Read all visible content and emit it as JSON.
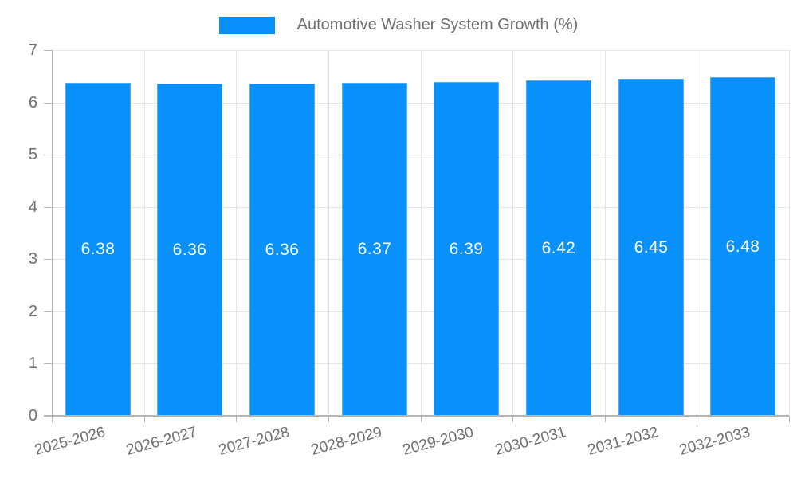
{
  "chart_data": {
    "type": "bar",
    "title": "Automotive Washer System Growth (%)",
    "categories": [
      "2025-2026",
      "2026-2027",
      "2027-2028",
      "2028-2029",
      "2029-2030",
      "2030-2031",
      "2031-2032",
      "2032-2033"
    ],
    "values": [
      6.38,
      6.36,
      6.36,
      6.37,
      6.39,
      6.42,
      6.45,
      6.48
    ],
    "value_labels": [
      "6.38",
      "6.36",
      "6.36",
      "6.37",
      "6.39",
      "6.42",
      "6.45",
      "6.48"
    ],
    "xlabel": "",
    "ylabel": "",
    "ylim": [
      0,
      7
    ],
    "ytick_step": 1,
    "ytick_labels": [
      "0",
      "1",
      "2",
      "3",
      "4",
      "5",
      "6",
      "7"
    ],
    "grid": true,
    "legend_position": "top",
    "x_label_rotation_deg": -15
  },
  "legend": {
    "label": "Automotive Washer System Growth (%)"
  },
  "colors": {
    "bar_fill": "#0890fb",
    "bar_border": "#55acfb",
    "grid_line": "#e5e5e5",
    "y_axis_line": "#b2b2b2",
    "x_axis_line": "#b5b5b5",
    "tick_mark": "#b5b5b5",
    "tick_text": "#6e6e6e",
    "value_label_text": "#ffffff",
    "background": "#ffffff"
  }
}
